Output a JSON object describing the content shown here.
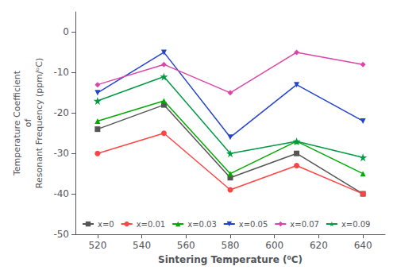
{
  "chart_data": {
    "type": "line",
    "xlabel": "Sintering Temperature (⁰C)",
    "ylabel": "Temperature Coefficient\nof\nResonant Frequency (ppm/ᵒC)",
    "x": [
      520,
      550,
      580,
      610,
      640
    ],
    "series": [
      {
        "name": "x=0",
        "color": "#555555",
        "marker": "square",
        "values": [
          -24,
          -18,
          -36,
          -30,
          -40
        ]
      },
      {
        "name": "x=0.01",
        "color": "#ff4444",
        "marker": "circle",
        "values": [
          -30,
          -25,
          -39,
          -33,
          -40
        ]
      },
      {
        "name": "x=0.03",
        "color": "#00aa00",
        "marker": "triangle-up",
        "values": [
          -22,
          -17,
          -35,
          -27,
          -35
        ]
      },
      {
        "name": "x=0.05",
        "color": "#2244cc",
        "marker": "triangle-down",
        "values": [
          -15,
          -5,
          -26,
          -13,
          -22
        ]
      },
      {
        "name": "x=0.07",
        "color": "#dd44aa",
        "marker": "diamond",
        "values": [
          -13,
          -8,
          -15,
          -5,
          -8
        ]
      },
      {
        "name": "x=0.09",
        "color": "#009944",
        "marker": "star",
        "values": [
          -17,
          -11,
          -30,
          -27,
          -31
        ]
      }
    ],
    "xlim": [
      510,
      650
    ],
    "ylim": [
      -50,
      5
    ],
    "xticks": [
      520,
      540,
      560,
      580,
      600,
      620,
      640
    ],
    "yticks": [
      0,
      -10,
      -20,
      -30,
      -40,
      -50
    ],
    "legend": "lower left",
    "grid": false
  }
}
